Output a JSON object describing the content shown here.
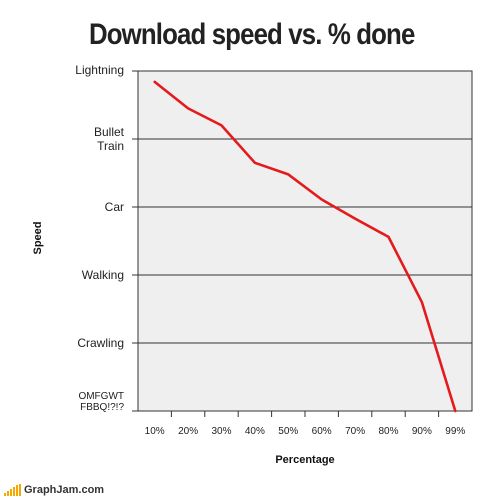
{
  "chart_data": {
    "type": "line",
    "title": "Download speed vs. % done",
    "xlabel": "Percentage",
    "ylabel": "Speed",
    "categories": [
      "10%",
      "20%",
      "30%",
      "40%",
      "50%",
      "60%",
      "70%",
      "80%",
      "90%",
      "99%"
    ],
    "y_levels": [
      "OMFGWT FBBQ!?!?",
      "Crawling",
      "Walking",
      "Car",
      "Bullet Train",
      "Lightning"
    ],
    "ylim": [
      0,
      5
    ],
    "grid": true,
    "legend": "none",
    "series": [
      {
        "values": [
          4.84,
          4.45,
          4.2,
          3.65,
          3.48,
          3.11,
          2.83,
          2.56,
          1.6,
          0
        ]
      }
    ],
    "line_color": "#e41a1c",
    "plot_background": "#efefef"
  },
  "footer": {
    "brand": "GraphJam.com"
  }
}
